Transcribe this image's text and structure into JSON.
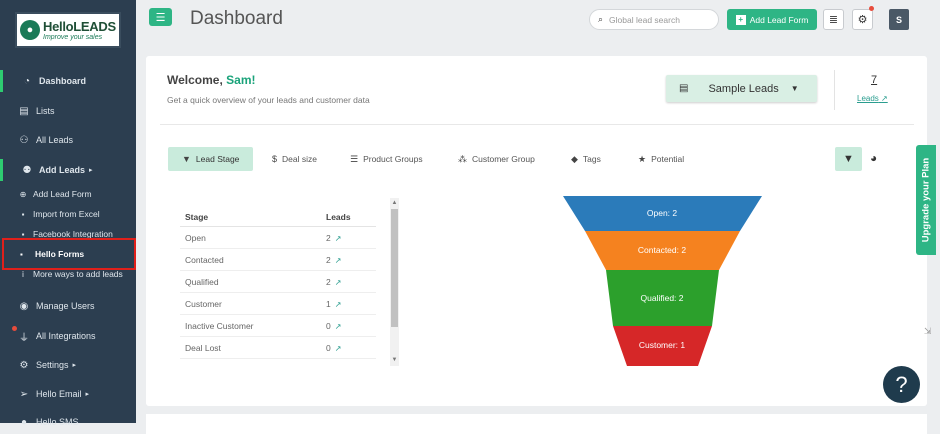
{
  "sidebar": {
    "logo": {
      "brand": "HelloLEADS",
      "tagline": "Improve your sales"
    },
    "items": [
      {
        "label": "Dashboard",
        "icon": "dashboard-icon"
      },
      {
        "label": "Lists",
        "icon": "list-icon"
      },
      {
        "label": "All Leads",
        "icon": "users-icon"
      },
      {
        "label": "Add Leads",
        "icon": "add-user-icon"
      },
      {
        "label": "Manage Users",
        "icon": "user-circle-icon"
      },
      {
        "label": "All Integrations",
        "icon": "plug-icon"
      },
      {
        "label": "Settings",
        "icon": "gear-icon"
      },
      {
        "label": "Hello Email",
        "icon": "paper-plane-icon"
      },
      {
        "label": "Hello SMS",
        "icon": "chat-icon"
      }
    ],
    "subitems": [
      {
        "label": "Add Lead Form"
      },
      {
        "label": "Import from Excel"
      },
      {
        "label": "Facebook Integration"
      },
      {
        "label": "Hello Forms"
      },
      {
        "label": "More ways to add leads"
      }
    ]
  },
  "header": {
    "title": "Dashboard",
    "search_placeholder": "Global lead search",
    "add_lead_label": "Add Lead Form",
    "avatar": "S"
  },
  "welcome": {
    "greeting": "Welcome, ",
    "name": "Sam!",
    "subtitle": "Get a quick overview of your leads and customer data",
    "sample_leads": "Sample Leads",
    "count": "7",
    "leads_link": "Leads"
  },
  "tabs": [
    {
      "label": "Lead Stage"
    },
    {
      "label": "Deal size"
    },
    {
      "label": "Product Groups"
    },
    {
      "label": "Customer Group"
    },
    {
      "label": "Tags"
    },
    {
      "label": "Potential"
    }
  ],
  "table": {
    "headers": [
      "Stage",
      "Leads"
    ],
    "rows": [
      {
        "stage": "Open",
        "leads": "2"
      },
      {
        "stage": "Contacted",
        "leads": "2"
      },
      {
        "stage": "Qualified",
        "leads": "2"
      },
      {
        "stage": "Customer",
        "leads": "1"
      },
      {
        "stage": "Inactive Customer",
        "leads": "0"
      },
      {
        "stage": "Deal Lost",
        "leads": "0"
      }
    ]
  },
  "funnel": {
    "segments": [
      {
        "label": "Open: 2",
        "color": "#2b7bba"
      },
      {
        "label": "Contacted: 2",
        "color": "#f5821f"
      },
      {
        "label": "Qualified: 2",
        "color": "#2ca02c"
      },
      {
        "label": "Customer: 1",
        "color": "#d62728"
      }
    ]
  },
  "upgrade_label": "Upgrade your Plan",
  "help_label": "?"
}
